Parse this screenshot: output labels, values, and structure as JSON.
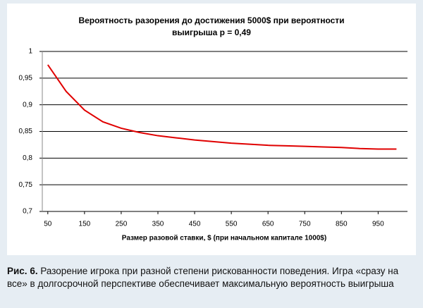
{
  "chart_data": {
    "type": "line",
    "title": [
      "Вероятность разорения до достижения 5000$ при вероятности",
      "выигрыша p = 0,49"
    ],
    "x_label": "Размер разовой ставки, $ (при начальном капитале 1000$)",
    "x": [
      50,
      100,
      150,
      200,
      250,
      300,
      350,
      400,
      450,
      500,
      550,
      600,
      650,
      700,
      750,
      800,
      850,
      900,
      950,
      1000
    ],
    "series": [
      {
        "color": "#e00000",
        "values": [
          0.975,
          0.925,
          0.89,
          0.868,
          0.856,
          0.848,
          0.842,
          0.838,
          0.834,
          0.831,
          0.828,
          0.826,
          0.824,
          0.823,
          0.822,
          0.821,
          0.82,
          0.818,
          0.817,
          0.817
        ]
      }
    ],
    "xlim": [
      35,
      1030
    ],
    "xticks": [
      50,
      150,
      250,
      350,
      450,
      550,
      650,
      750,
      850,
      950
    ],
    "ylim": [
      0.7,
      1
    ],
    "yticks": [
      {
        "value": 0.7,
        "label": "0,7"
      },
      {
        "value": 0.75,
        "label": "0,75"
      },
      {
        "value": 0.8,
        "label": "0,8"
      },
      {
        "value": 0.85,
        "label": "0,85"
      },
      {
        "value": 0.9,
        "label": "0,9"
      },
      {
        "value": 0.95,
        "label": "0,95"
      },
      1
    ],
    "grid": true
  },
  "caption": {
    "label": "Рис. 6.",
    "text": " Разорение игрока при разной степени рискованности поведения. Игра «сразу на все» в долгосрочной перспективе обеспечивает максимальную вероятность выигрыша"
  }
}
